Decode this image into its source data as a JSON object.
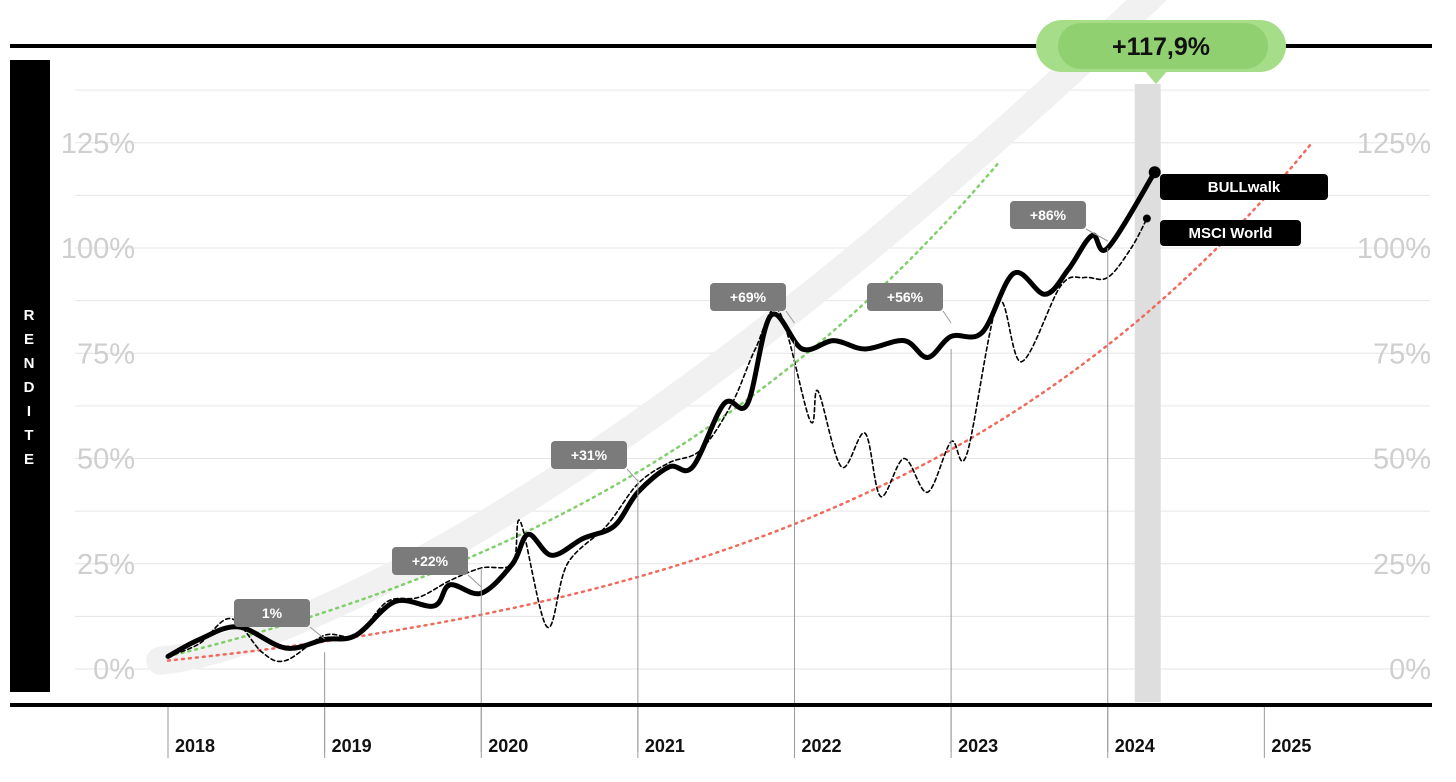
{
  "chart_data": {
    "type": "line",
    "ylabel": "RENDITE",
    "yticks": [
      "0%",
      "25%",
      "50%",
      "75%",
      "100%",
      "125%"
    ],
    "ylim": [
      -5,
      150
    ],
    "x_years": [
      "2018",
      "2019",
      "2020",
      "2021",
      "2022",
      "2023",
      "2024",
      "2025"
    ],
    "xlim": [
      2018,
      2025.4
    ],
    "grid": true,
    "headline": "+117,9%",
    "highlight_year": 2024,
    "annotations": [
      {
        "label": "1%",
        "x": 2019
      },
      {
        "label": "+22%",
        "x": 2020
      },
      {
        "label": "+31%",
        "x": 2021
      },
      {
        "label": "+69%",
        "x": 2022
      },
      {
        "label": "+56%",
        "x": 2023
      },
      {
        "label": "+86%",
        "x": 2024
      }
    ],
    "series": [
      {
        "name": "BULLwalk",
        "color": "#000000",
        "style": "solid",
        "points": [
          [
            2018.0,
            3
          ],
          [
            2018.2,
            7
          ],
          [
            2018.45,
            10
          ],
          [
            2018.75,
            5
          ],
          [
            2019.0,
            7
          ],
          [
            2019.2,
            8
          ],
          [
            2019.45,
            16
          ],
          [
            2019.7,
            15
          ],
          [
            2019.8,
            20
          ],
          [
            2020.0,
            18
          ],
          [
            2020.2,
            25
          ],
          [
            2020.3,
            32
          ],
          [
            2020.45,
            27
          ],
          [
            2020.65,
            31
          ],
          [
            2020.85,
            34
          ],
          [
            2021.0,
            42
          ],
          [
            2021.2,
            48
          ],
          [
            2021.35,
            48
          ],
          [
            2021.55,
            63
          ],
          [
            2021.7,
            63
          ],
          [
            2021.85,
            84
          ],
          [
            2022.05,
            76
          ],
          [
            2022.25,
            78
          ],
          [
            2022.45,
            76
          ],
          [
            2022.7,
            78
          ],
          [
            2022.85,
            74
          ],
          [
            2023.0,
            79
          ],
          [
            2023.2,
            80
          ],
          [
            2023.4,
            94
          ],
          [
            2023.6,
            89
          ],
          [
            2023.75,
            95
          ],
          [
            2023.9,
            103
          ],
          [
            2024.0,
            100
          ],
          [
            2024.3,
            118
          ]
        ]
      },
      {
        "name": "MSCI World",
        "color": "#000000",
        "style": "dashed",
        "points": [
          [
            2018.0,
            3
          ],
          [
            2018.2,
            6
          ],
          [
            2018.4,
            12
          ],
          [
            2018.6,
            4
          ],
          [
            2018.75,
            2
          ],
          [
            2019.0,
            8
          ],
          [
            2019.2,
            8
          ],
          [
            2019.4,
            16
          ],
          [
            2019.6,
            17
          ],
          [
            2019.8,
            21
          ],
          [
            2020.0,
            24
          ],
          [
            2020.2,
            25
          ],
          [
            2020.25,
            35
          ],
          [
            2020.42,
            10
          ],
          [
            2020.55,
            25
          ],
          [
            2020.8,
            34
          ],
          [
            2021.0,
            44
          ],
          [
            2021.2,
            49
          ],
          [
            2021.4,
            52
          ],
          [
            2021.6,
            63
          ],
          [
            2021.75,
            76
          ],
          [
            2021.9,
            85
          ],
          [
            2022.1,
            59
          ],
          [
            2022.15,
            66
          ],
          [
            2022.3,
            48
          ],
          [
            2022.45,
            56
          ],
          [
            2022.55,
            41
          ],
          [
            2022.7,
            50
          ],
          [
            2022.85,
            42
          ],
          [
            2023.0,
            54
          ],
          [
            2023.1,
            51
          ],
          [
            2023.3,
            87
          ],
          [
            2023.45,
            73
          ],
          [
            2023.7,
            91
          ],
          [
            2023.85,
            93
          ],
          [
            2024.0,
            93
          ],
          [
            2024.15,
            100
          ],
          [
            2024.25,
            107
          ]
        ]
      }
    ],
    "trend_lines": [
      {
        "color": "#7fcf6a",
        "style": "dotted"
      },
      {
        "color": "#ee6b5e",
        "style": "dotted"
      }
    ]
  }
}
